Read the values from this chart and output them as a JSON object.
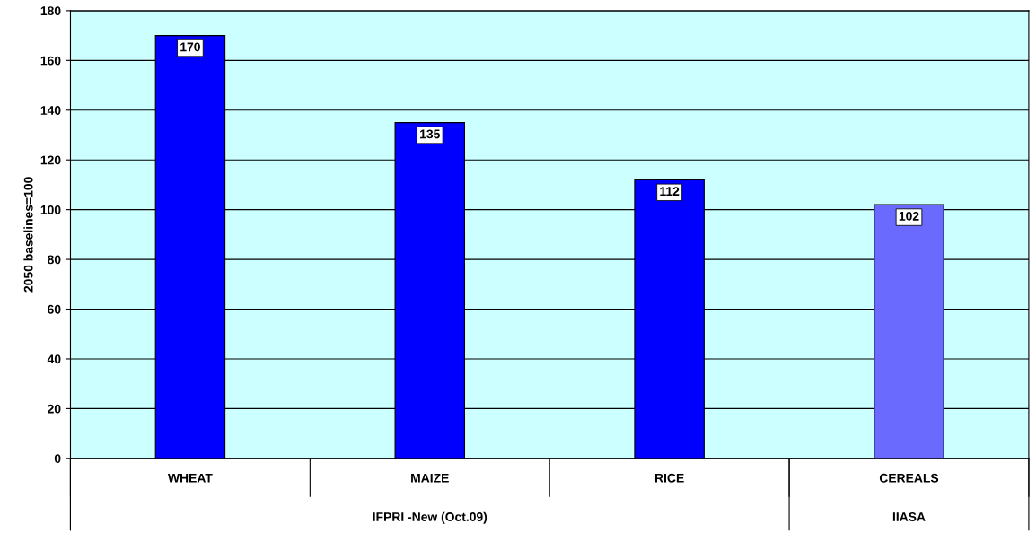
{
  "chart_data": {
    "type": "bar",
    "ylabel": "2050 baselines=100",
    "categories": [
      "WHEAT",
      "MAIZE",
      "RICE",
      "CEREALS"
    ],
    "values": [
      170,
      135,
      112,
      102
    ],
    "colors": [
      "#0000ff",
      "#0000ff",
      "#0000ff",
      "#6a6aff"
    ],
    "ylim": [
      0,
      180
    ],
    "yticks": [
      0,
      20,
      40,
      60,
      80,
      100,
      120,
      140,
      160,
      180
    ],
    "grid": "y",
    "data_labels": true,
    "annotations": [
      "IFPRI -New (Oct.09)",
      "IIASA"
    ]
  }
}
